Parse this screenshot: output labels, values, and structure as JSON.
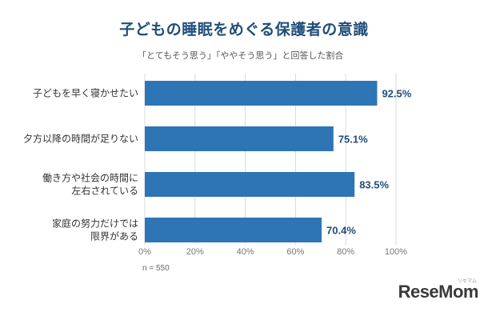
{
  "title": "子どもの睡眠をめぐる保護者の意識",
  "subtitle": "「とてもそう思う」「ややそう思う」と回答した割合",
  "note": "n = 550",
  "logo": "ReseMom",
  "logo_sub": "リセマム",
  "colors": {
    "bar": "#2e75b6",
    "title": "#1f4e79",
    "grid": "#d9d9d9"
  },
  "chart_data": {
    "type": "bar",
    "orientation": "horizontal",
    "categories": [
      [
        "子どもを早く寝かせたい"
      ],
      [
        "夕方以降の時間が足りない"
      ],
      [
        "働き方や社会の時間に",
        "左右されている"
      ],
      [
        "家庭の努力だけでは",
        "限界がある"
      ]
    ],
    "values": [
      92.5,
      75.1,
      83.5,
      70.4
    ],
    "value_labels": [
      "92.5%",
      "75.1%",
      "83.5%",
      "70.4%"
    ],
    "xticks": [
      "0%",
      "20%",
      "40%",
      "60%",
      "80%",
      "100%"
    ],
    "xlim": [
      0,
      100
    ],
    "grid": "vertical",
    "legend": "none"
  }
}
